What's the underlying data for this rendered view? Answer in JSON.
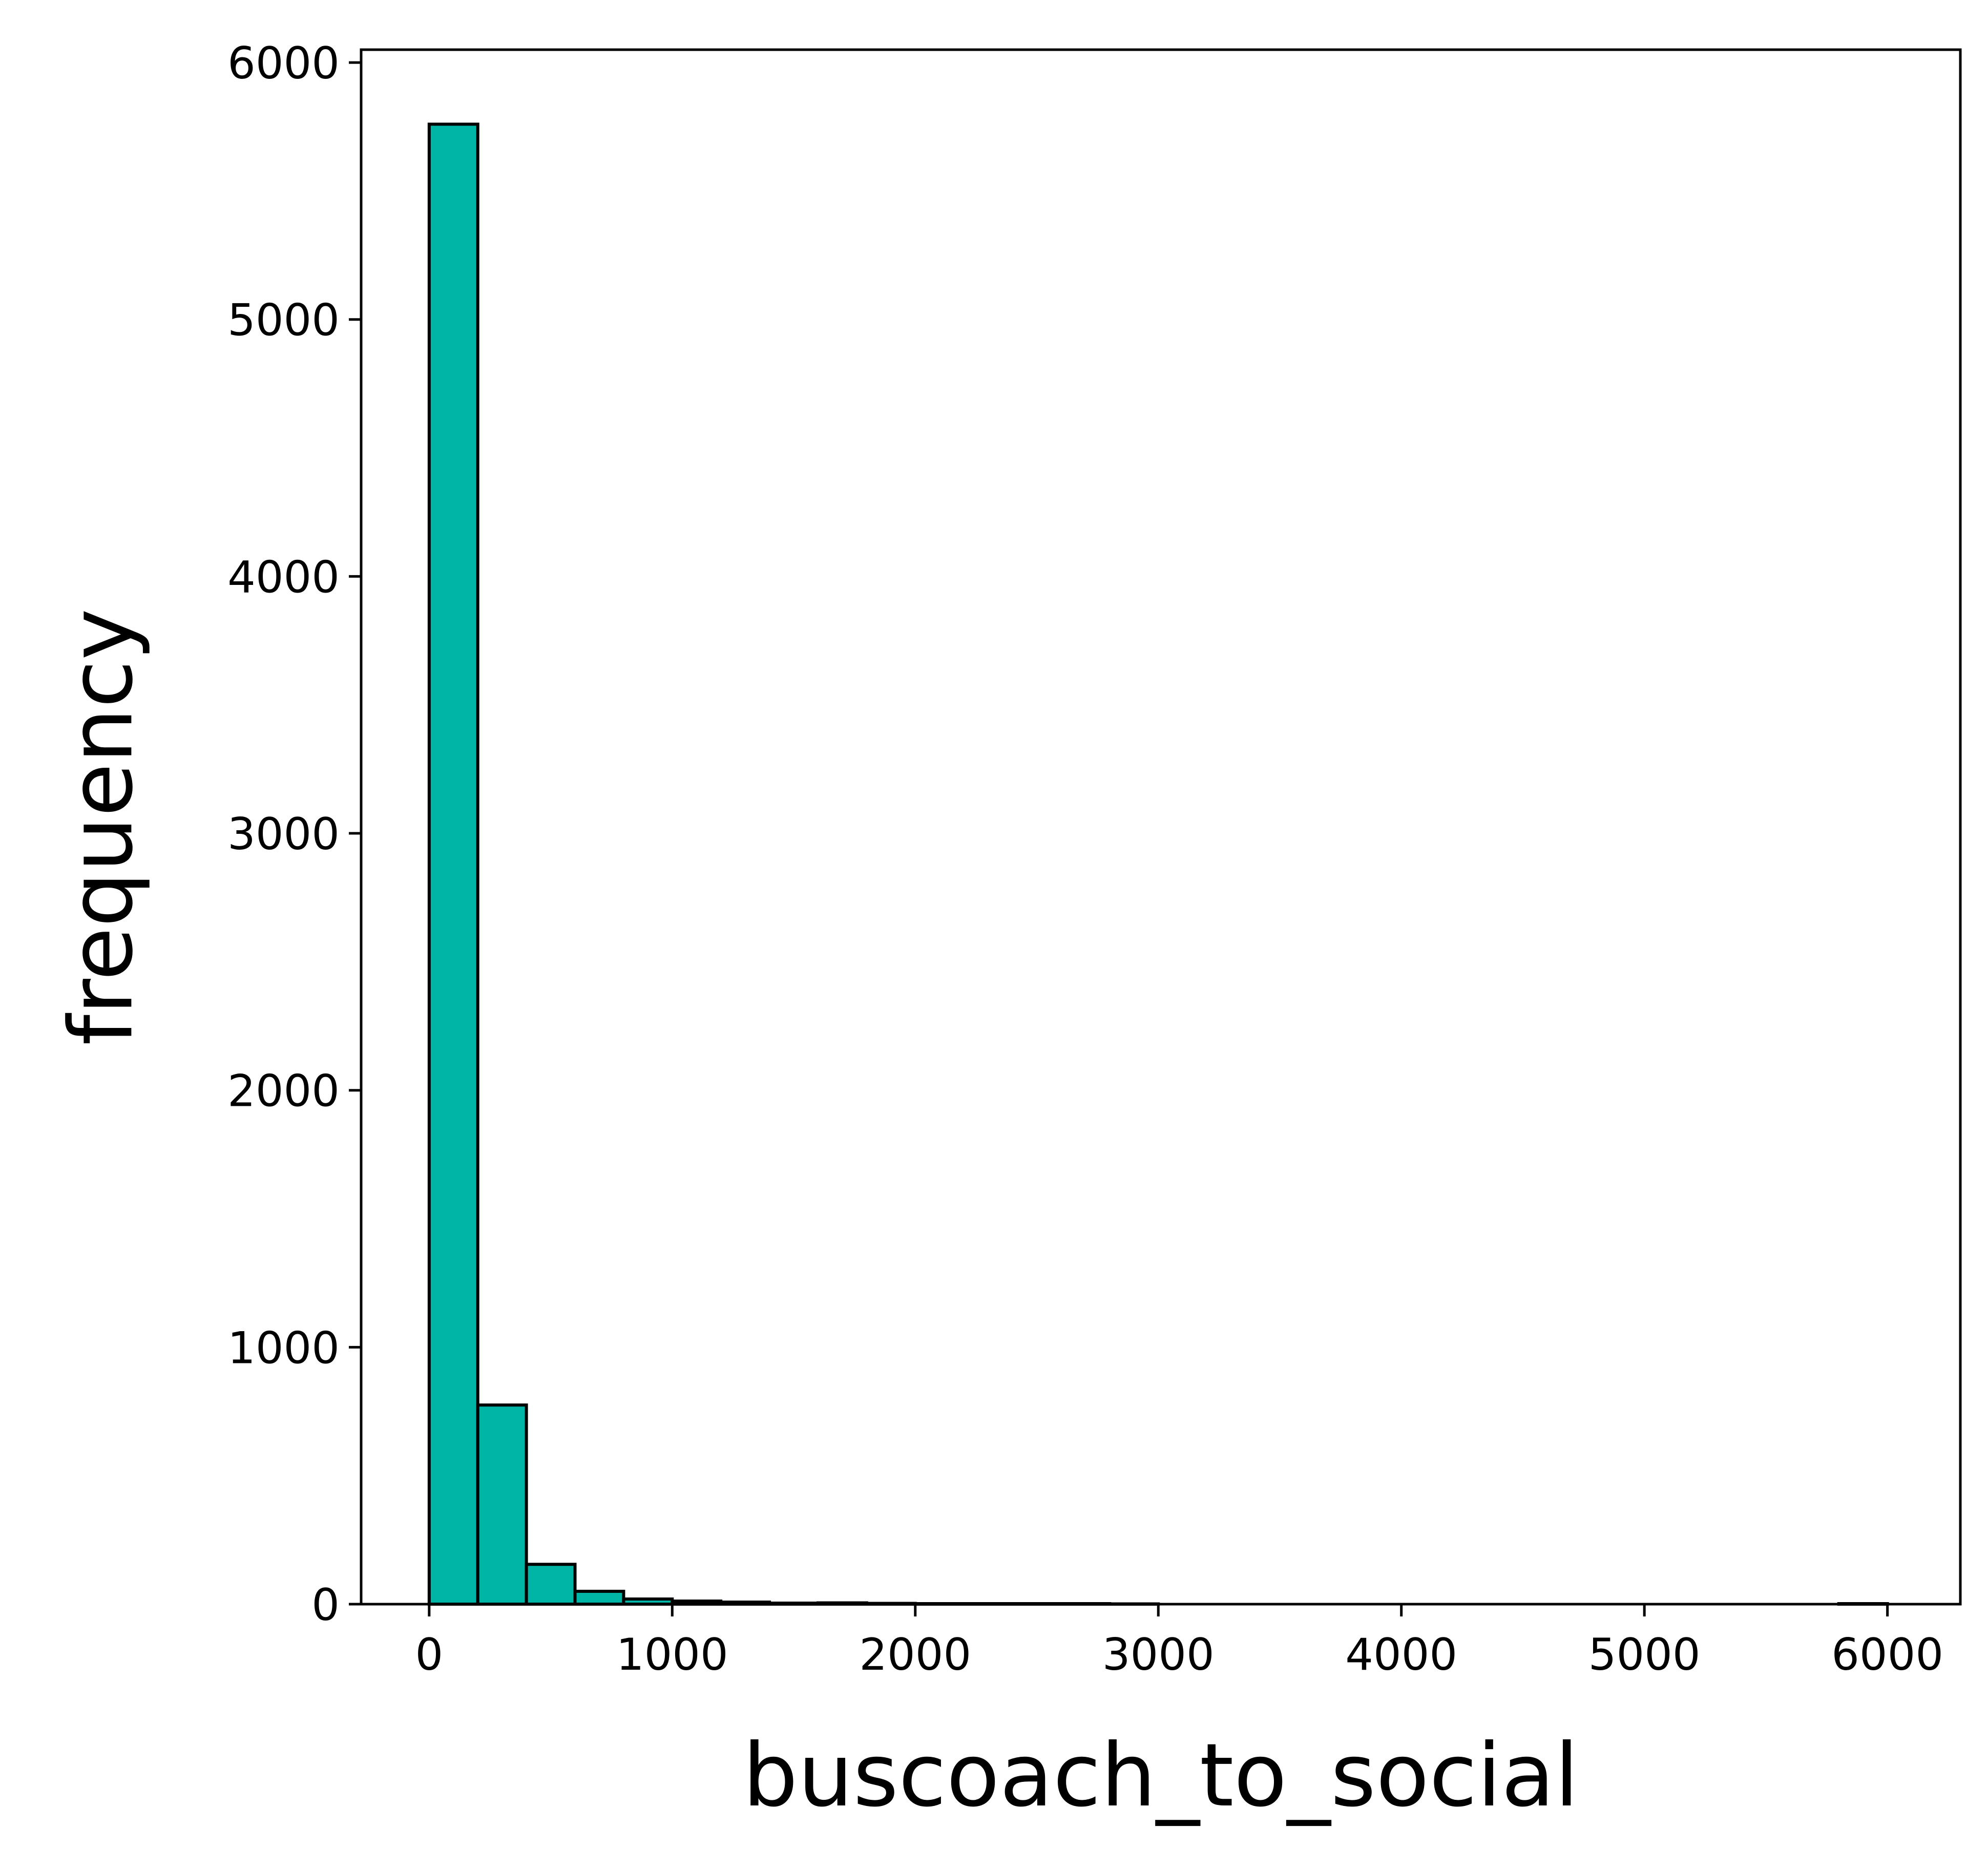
{
  "chart_data": {
    "type": "bar",
    "xlabel": "buscoach_to_social",
    "ylabel": "frequency",
    "xlim": [
      -280,
      6300
    ],
    "ylim": [
      0,
      6050
    ],
    "xticks": [
      0,
      1000,
      2000,
      3000,
      4000,
      5000,
      6000
    ],
    "yticks": [
      0,
      1000,
      2000,
      3000,
      4000,
      5000,
      6000
    ],
    "xtick_labels": [
      "0",
      "1000",
      "2000",
      "3000",
      "4000",
      "5000",
      "6000"
    ],
    "ytick_labels": [
      "0",
      "1000",
      "2000",
      "3000",
      "4000",
      "5000",
      "6000"
    ],
    "bar_color": "#00b5a6",
    "edge_color": "#000000",
    "grid": false,
    "legend": false,
    "bins": [
      {
        "x0": 0,
        "x1": 200,
        "value": 5760
      },
      {
        "x0": 200,
        "x1": 400,
        "value": 775
      },
      {
        "x0": 400,
        "x1": 600,
        "value": 155
      },
      {
        "x0": 600,
        "x1": 800,
        "value": 50
      },
      {
        "x0": 800,
        "x1": 1000,
        "value": 20
      },
      {
        "x0": 1000,
        "x1": 1200,
        "value": 12
      },
      {
        "x0": 1200,
        "x1": 1400,
        "value": 8
      },
      {
        "x0": 1400,
        "x1": 1600,
        "value": 4
      },
      {
        "x0": 1600,
        "x1": 1800,
        "value": 5
      },
      {
        "x0": 1800,
        "x1": 2000,
        "value": 3
      },
      {
        "x0": 2000,
        "x1": 2200,
        "value": 2
      },
      {
        "x0": 2200,
        "x1": 2400,
        "value": 2
      },
      {
        "x0": 2400,
        "x1": 2600,
        "value": 2
      },
      {
        "x0": 2600,
        "x1": 2800,
        "value": 2
      },
      {
        "x0": 2800,
        "x1": 3000,
        "value": 1
      },
      {
        "x0": 3000,
        "x1": 3200,
        "value": 0
      },
      {
        "x0": 3200,
        "x1": 3400,
        "value": 0
      },
      {
        "x0": 3400,
        "x1": 3600,
        "value": 0
      },
      {
        "x0": 3600,
        "x1": 3800,
        "value": 0
      },
      {
        "x0": 3800,
        "x1": 4000,
        "value": 0
      },
      {
        "x0": 4000,
        "x1": 4200,
        "value": 0
      },
      {
        "x0": 4200,
        "x1": 4400,
        "value": 0
      },
      {
        "x0": 4400,
        "x1": 4600,
        "value": 0
      },
      {
        "x0": 4600,
        "x1": 4800,
        "value": 0
      },
      {
        "x0": 4800,
        "x1": 5000,
        "value": 0
      },
      {
        "x0": 5000,
        "x1": 5200,
        "value": 0
      },
      {
        "x0": 5200,
        "x1": 5400,
        "value": 0
      },
      {
        "x0": 5400,
        "x1": 5600,
        "value": 0
      },
      {
        "x0": 5600,
        "x1": 5800,
        "value": 0
      },
      {
        "x0": 5800,
        "x1": 6000,
        "value": 2
      }
    ]
  }
}
